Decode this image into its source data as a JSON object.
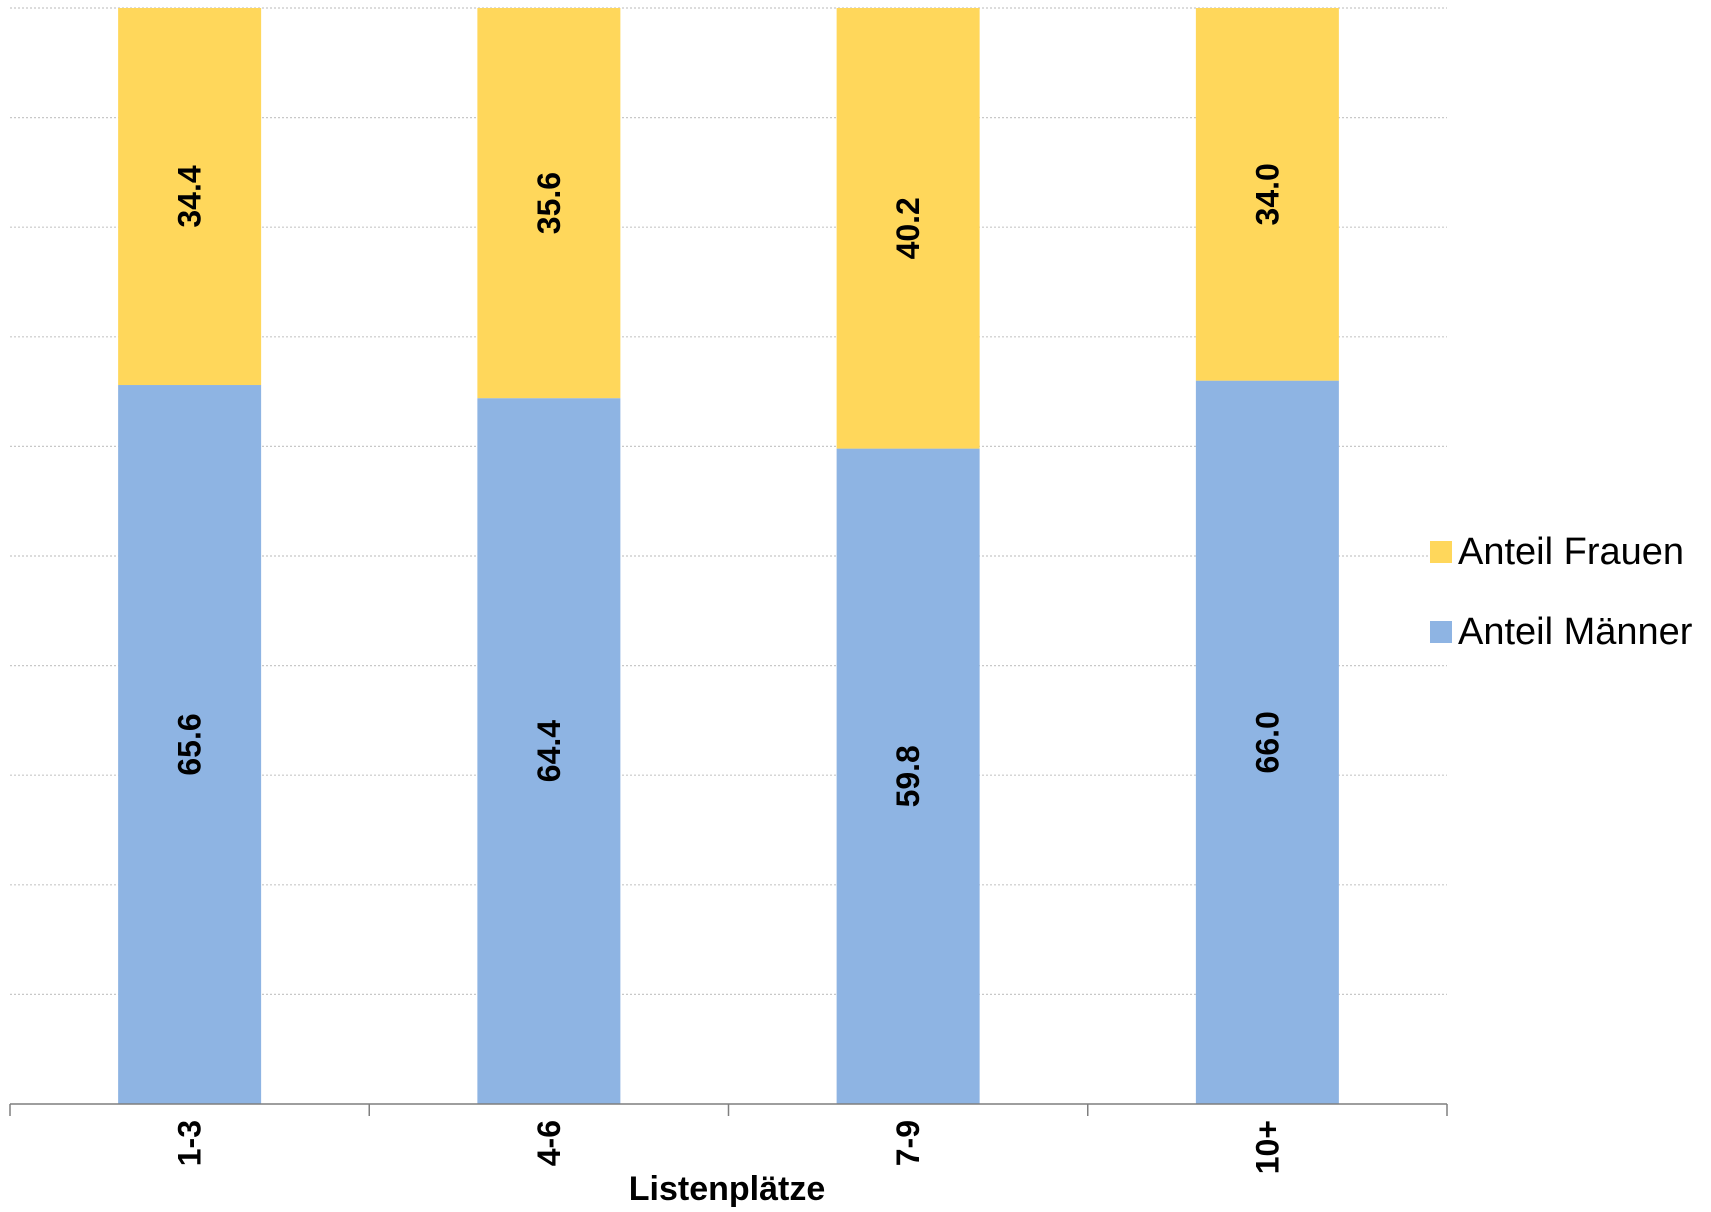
{
  "chart_data": {
    "type": "bar",
    "stacked": true,
    "categories": [
      "1-3",
      "4-6",
      "7-9",
      "10+"
    ],
    "series": [
      {
        "name": "Anteil Männer",
        "values": [
          65.6,
          64.4,
          59.8,
          66.0
        ],
        "labels": [
          "65.6",
          "64.4",
          "59.8",
          "66.0"
        ],
        "color": "#8EB4E3"
      },
      {
        "name": "Anteil Frauen",
        "values": [
          34.4,
          35.6,
          40.2,
          34.0
        ],
        "labels": [
          "34.4",
          "35.6",
          "40.2",
          "34.0"
        ],
        "color": "#FFD75B"
      }
    ],
    "title": "",
    "xlabel": "Listenplätze",
    "ylabel": "",
    "ylim": [
      0,
      100
    ],
    "grid": true,
    "legend": "right",
    "legend_order": [
      "Anteil Frauen",
      "Anteil Männer"
    ]
  }
}
